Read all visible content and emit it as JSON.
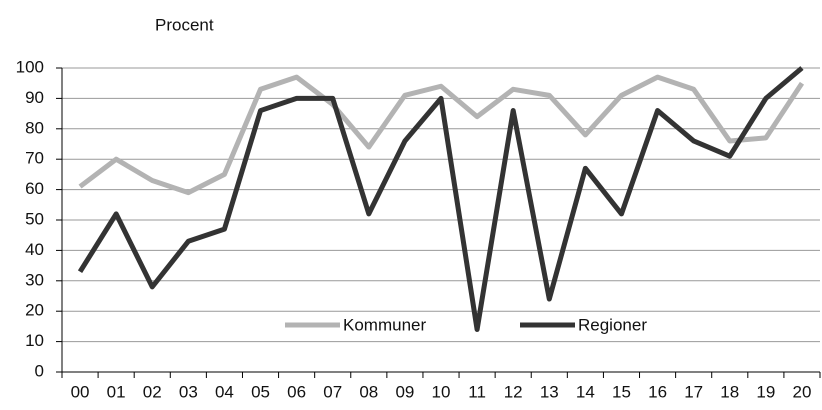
{
  "chart_data": {
    "type": "line",
    "ylabel": "Procent",
    "categories": [
      "00",
      "01",
      "02",
      "03",
      "04",
      "05",
      "06",
      "07",
      "08",
      "09",
      "10",
      "11",
      "12",
      "13",
      "14",
      "15",
      "16",
      "17",
      "18",
      "19",
      "20"
    ],
    "series": [
      {
        "name": "Kommuner",
        "color": "#b3b3b3",
        "values": [
          61,
          70,
          63,
          59,
          65,
          93,
          97,
          88,
          74,
          91,
          94,
          84,
          93,
          91,
          78,
          91,
          97,
          93,
          76,
          77,
          95
        ]
      },
      {
        "name": "Regioner",
        "color": "#333333",
        "values": [
          33,
          52,
          28,
          43,
          47,
          86,
          90,
          90,
          52,
          76,
          90,
          14,
          86,
          24,
          67,
          52,
          86,
          76,
          71,
          90,
          100
        ]
      }
    ],
    "ylim": [
      0,
      100
    ],
    "yticks": [
      0,
      10,
      20,
      30,
      40,
      50,
      60,
      70,
      80,
      90,
      100
    ],
    "grid": true,
    "legend": "bottom"
  }
}
